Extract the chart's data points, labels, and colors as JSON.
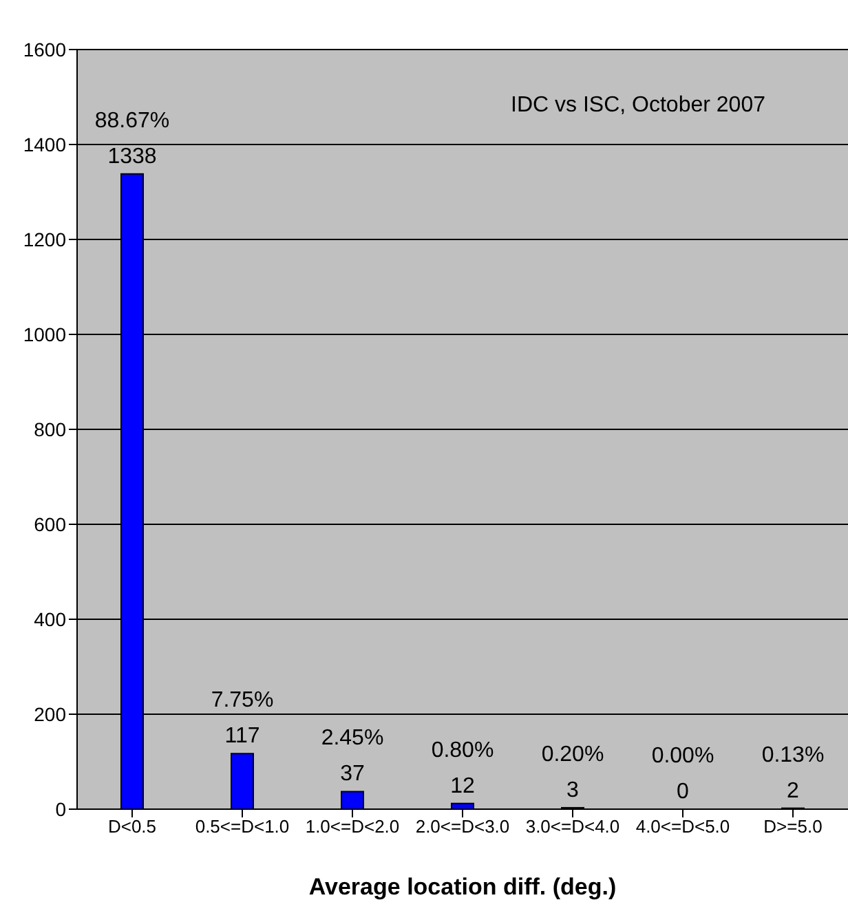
{
  "chart_data": {
    "type": "bar",
    "xlabel": "Average location diff. (deg.)",
    "categories": [
      "D<0.5",
      "0.5<=D<1.0",
      "1.0<=D<2.0",
      "2.0<=D<3.0",
      "3.0<=D<4.0",
      "4.0<=D<5.0",
      "D>=5.0"
    ],
    "values": [
      1338,
      117,
      37,
      12,
      3,
      0,
      2
    ],
    "color": "#0000ff",
    "ylim": [
      0,
      1600
    ],
    "yticks": [
      0,
      200,
      400,
      600,
      800,
      1000,
      1200,
      1400,
      1600
    ],
    "grid": "y",
    "data_labels": true,
    "legend": false,
    "annotations": [
      "IDC vs ISC, October  2007",
      {
        "text": "88.67%",
        "x": "D<0.5",
        "y": 1338
      },
      {
        "text": "7.75%",
        "x": "0.5<=D<1.0",
        "y": 117
      },
      {
        "text": "2.45%",
        "x": "1.0<=D<2.0",
        "y": 37
      },
      {
        "text": "0.80%",
        "x": "2.0<=D<3.0",
        "y": 12
      },
      {
        "text": "0.20%",
        "x": "3.0<=D<4.0",
        "y": 3
      },
      {
        "text": "0.00%",
        "x": "4.0<=D<5.0",
        "y": 0
      },
      {
        "text": "0.13%",
        "x": "D>=5.0",
        "y": 2
      }
    ]
  }
}
